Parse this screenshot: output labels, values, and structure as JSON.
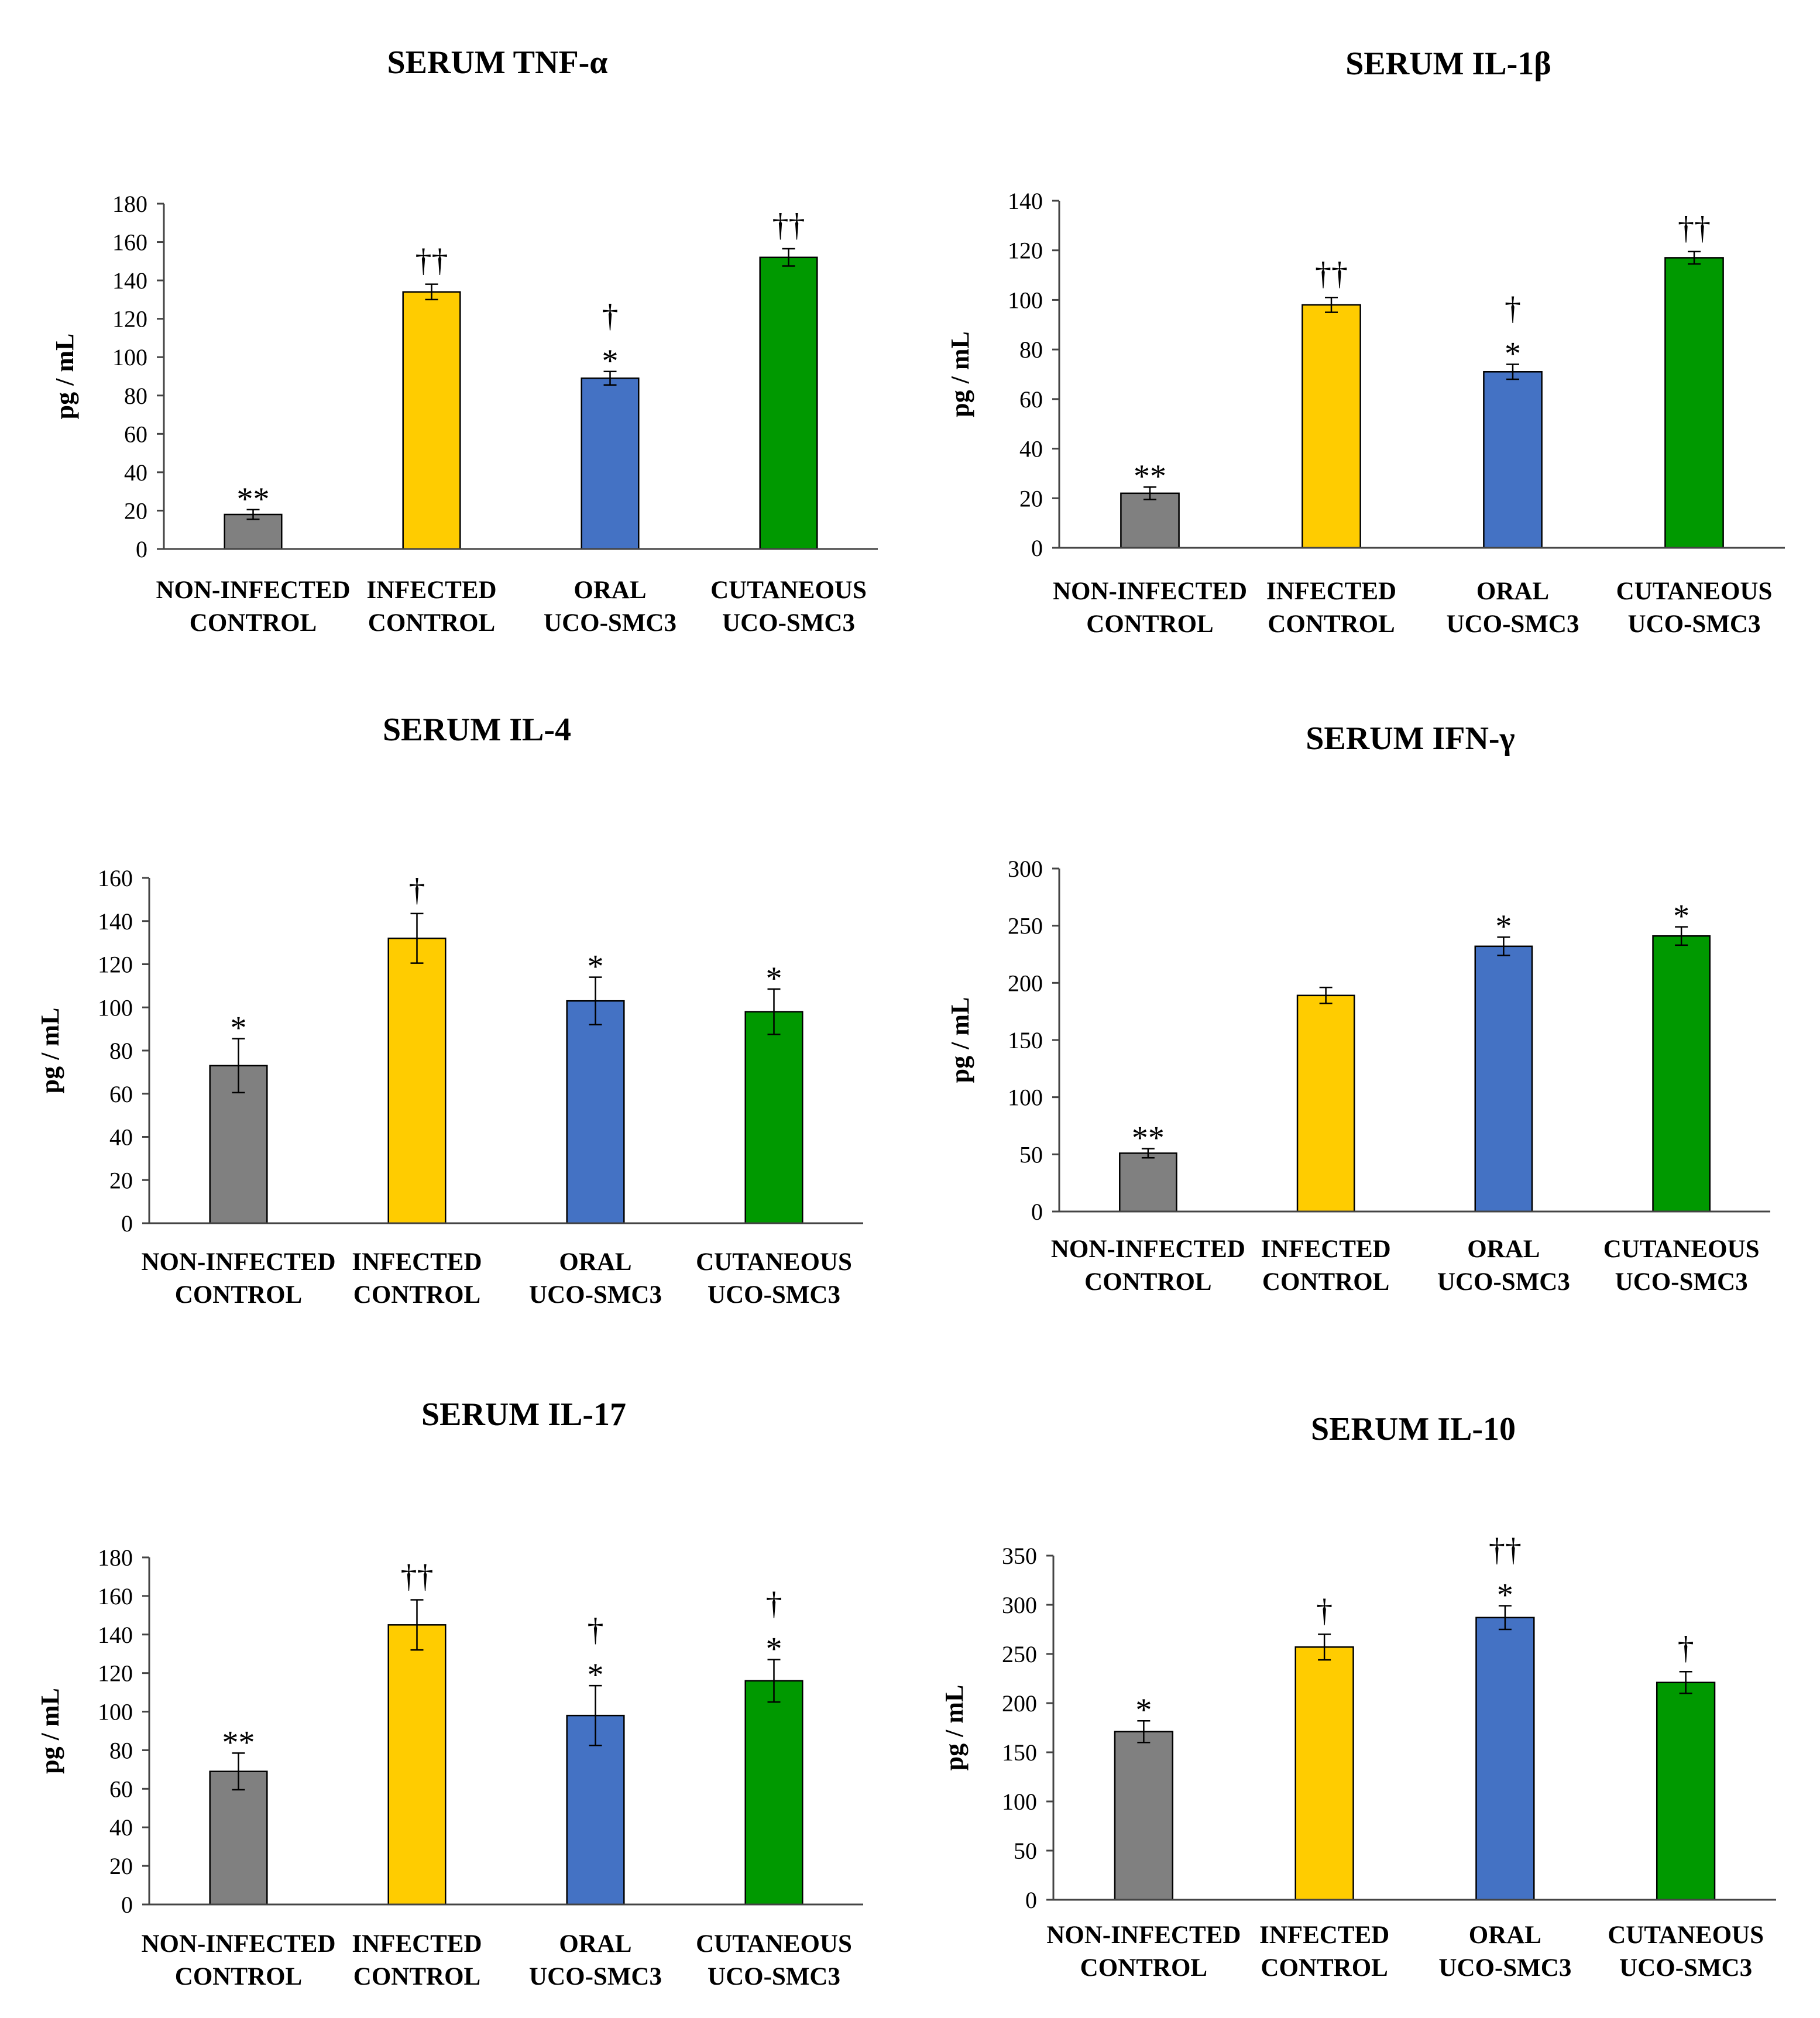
{
  "colors": {
    "non_infected": "#808080",
    "infected": "#FFCC00",
    "oral": "#4472C4",
    "cutaneous": "#009900"
  },
  "chart_data": [
    {
      "type": "bar",
      "title": "SERUM TNF-α",
      "ylabel": "pg / mL",
      "ylim": [
        0,
        180
      ],
      "yticks": [
        0,
        20,
        40,
        60,
        80,
        100,
        120,
        140,
        160,
        180
      ],
      "categories": [
        [
          "NON-INFECTED",
          "CONTROL"
        ],
        [
          "INFECTED",
          "CONTROL"
        ],
        [
          "ORAL",
          "UCO-SMC3"
        ],
        [
          "CUTANEOUS",
          "UCO-SMC3"
        ]
      ],
      "values": [
        18,
        134,
        89,
        152
      ],
      "errors": [
        2.5,
        4,
        3.5,
        4.5
      ],
      "annotations": [
        [
          "**"
        ],
        [
          "††"
        ],
        [
          "†",
          "*"
        ],
        [
          "††"
        ]
      ]
    },
    {
      "type": "bar",
      "title": "SERUM IL-1β",
      "ylabel": "pg / mL",
      "ylim": [
        0,
        140
      ],
      "yticks": [
        0,
        20,
        40,
        60,
        80,
        100,
        120,
        140
      ],
      "categories": [
        [
          "NON-INFECTED",
          "CONTROL"
        ],
        [
          "INFECTED",
          "CONTROL"
        ],
        [
          "ORAL",
          "UCO-SMC3"
        ],
        [
          "CUTANEOUS",
          "UCO-SMC3"
        ]
      ],
      "values": [
        22,
        98,
        71,
        117
      ],
      "errors": [
        2.5,
        3,
        3,
        2.5
      ],
      "annotations": [
        [
          "**"
        ],
        [
          "††"
        ],
        [
          "†",
          "*"
        ],
        [
          "††"
        ]
      ]
    },
    {
      "type": "bar",
      "title": "SERUM IL-4",
      "ylabel": "pg / mL",
      "ylim": [
        0,
        160
      ],
      "yticks": [
        0,
        20,
        40,
        60,
        80,
        100,
        120,
        140,
        160
      ],
      "categories": [
        [
          "NON-INFECTED",
          "CONTROL"
        ],
        [
          "INFECTED",
          "CONTROL"
        ],
        [
          "ORAL",
          "UCO-SMC3"
        ],
        [
          "CUTANEOUS",
          "UCO-SMC3"
        ]
      ],
      "values": [
        73,
        132,
        103,
        98
      ],
      "errors": [
        12.5,
        11.5,
        11,
        10.5
      ],
      "annotations": [
        [
          "*"
        ],
        [
          "†"
        ],
        [
          "*"
        ],
        [
          "*"
        ]
      ]
    },
    {
      "type": "bar",
      "title": "SERUM IFN-γ",
      "ylabel": "pg / mL",
      "ylim": [
        0,
        300
      ],
      "yticks": [
        0,
        50,
        100,
        150,
        200,
        250,
        300
      ],
      "categories": [
        [
          "NON-INFECTED",
          "CONTROL"
        ],
        [
          "INFECTED",
          "CONTROL"
        ],
        [
          "ORAL",
          "UCO-SMC3"
        ],
        [
          "CUTANEOUS",
          "UCO-SMC3"
        ]
      ],
      "values": [
        51,
        189,
        232,
        241
      ],
      "errors": [
        4,
        7,
        8,
        8
      ],
      "annotations": [
        [
          "**"
        ],
        [],
        [
          "*"
        ],
        [
          "*"
        ]
      ]
    },
    {
      "type": "bar",
      "title": "SERUM IL-17",
      "ylabel": "pg / mL",
      "ylim": [
        0,
        180
      ],
      "yticks": [
        0,
        20,
        40,
        60,
        80,
        100,
        120,
        140,
        160,
        180
      ],
      "categories": [
        [
          "NON-INFECTED",
          "CONTROL"
        ],
        [
          "INFECTED",
          "CONTROL"
        ],
        [
          "ORAL",
          "UCO-SMC3"
        ],
        [
          "CUTANEOUS",
          "UCO-SMC3"
        ]
      ],
      "values": [
        69,
        145,
        98,
        116
      ],
      "errors": [
        9.5,
        13,
        15.5,
        11
      ],
      "annotations": [
        [
          "**"
        ],
        [
          "††"
        ],
        [
          "†",
          "*"
        ],
        [
          "†",
          "*"
        ]
      ]
    },
    {
      "type": "bar",
      "title": "SERUM IL-10",
      "ylabel": "pg / mL",
      "ylim": [
        0,
        350
      ],
      "yticks": [
        0,
        50,
        100,
        150,
        200,
        250,
        300,
        350
      ],
      "categories": [
        [
          "NON-INFECTED",
          "CONTROL"
        ],
        [
          "INFECTED",
          "CONTROL"
        ],
        [
          "ORAL",
          "UCO-SMC3"
        ],
        [
          "CUTANEOUS",
          "UCO-SMC3"
        ]
      ],
      "values": [
        171,
        257,
        287,
        221
      ],
      "errors": [
        11,
        13,
        12,
        11
      ],
      "annotations": [
        [
          "*"
        ],
        [
          "†"
        ],
        [
          "††",
          "*"
        ],
        [
          "†"
        ]
      ]
    }
  ]
}
